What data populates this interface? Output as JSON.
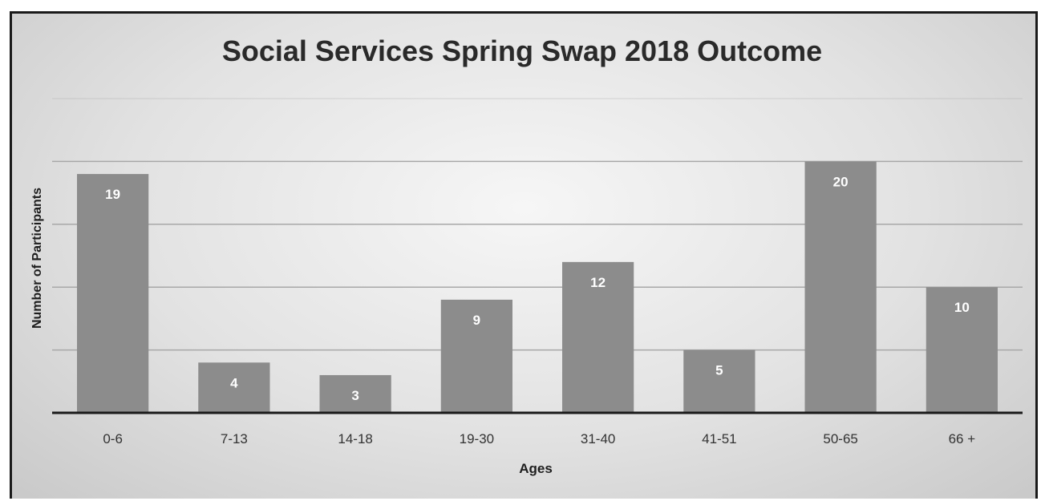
{
  "chart_data": {
    "type": "bar",
    "title": "Social Services Spring Swap 2018 Outcome",
    "xlabel": "Ages",
    "ylabel": "Number of Participants",
    "categories": [
      "0-6",
      "7-13",
      "14-18",
      "19-30",
      "31-40",
      "41-51",
      "50-65",
      "66 +"
    ],
    "values": [
      19,
      4,
      3,
      9,
      12,
      5,
      20,
      10
    ],
    "ylim": [
      0,
      25
    ],
    "y_gridlines": [
      5,
      10,
      15,
      20,
      25
    ],
    "grid": true,
    "legend": "none",
    "data_labels": true,
    "colors": {
      "bar": "#8c8c8c",
      "gridline": "#a8a8a8",
      "axis": "#1a1a1a",
      "label": "#ffffff"
    }
  }
}
